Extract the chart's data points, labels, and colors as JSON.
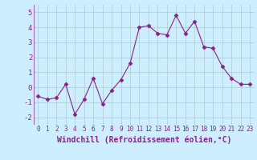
{
  "x": [
    0,
    1,
    2,
    3,
    4,
    5,
    6,
    7,
    8,
    9,
    10,
    11,
    12,
    13,
    14,
    15,
    16,
    17,
    18,
    19,
    20,
    21,
    22,
    23
  ],
  "y": [
    -0.6,
    -0.8,
    -0.7,
    0.2,
    -1.8,
    -0.8,
    0.6,
    -1.1,
    -0.2,
    0.5,
    1.6,
    4.0,
    4.1,
    3.6,
    3.5,
    4.8,
    3.6,
    4.4,
    2.7,
    2.6,
    1.4,
    0.6,
    0.2,
    0.2
  ],
  "line_color": "#882288",
  "marker": "D",
  "marker_size": 2.5,
  "background_color": "#cceeff",
  "grid_color": "#aacccc",
  "xlabel": "Windchill (Refroidissement éolien,°C)",
  "xlabel_fontsize": 7,
  "xtick_fontsize": 5.5,
  "ytick_fontsize": 6.5,
  "ylim": [
    -2.5,
    5.5
  ],
  "xlim": [
    -0.5,
    23.5
  ],
  "yticks": [
    -2,
    -1,
    0,
    1,
    2,
    3,
    4,
    5
  ],
  "xticks": [
    0,
    1,
    2,
    3,
    4,
    5,
    6,
    7,
    8,
    9,
    10,
    11,
    12,
    13,
    14,
    15,
    16,
    17,
    18,
    19,
    20,
    21,
    22,
    23
  ]
}
